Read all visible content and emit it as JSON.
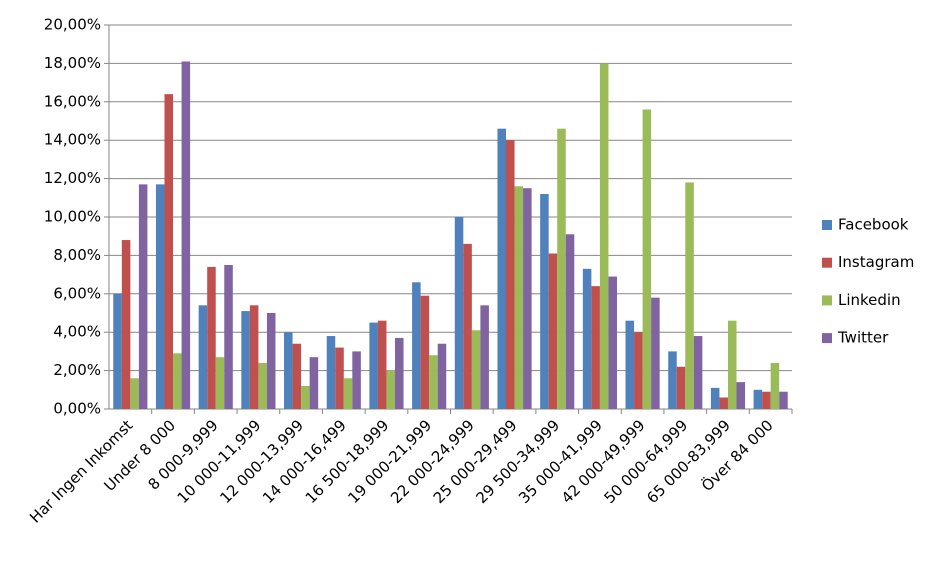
{
  "chart_data": {
    "type": "bar",
    "categories": [
      "Har Ingen Inkomst",
      "Under 8 000",
      "8 000-9,999",
      "10 000-11,999",
      "12 000-13,999",
      "14 000-16,499",
      "16 500-18,999",
      "19 000-21,999",
      "22 000-24,999",
      "25 000-29,499",
      "29 500-34,999",
      "35 000-41,999",
      "42 000-49,999",
      "50 000-64,999",
      "65 000-83,999",
      "Över 84 000"
    ],
    "series": [
      {
        "name": "Facebook",
        "color": "#4f81bd",
        "values": [
          6.0,
          11.7,
          5.4,
          5.1,
          4.0,
          3.8,
          4.5,
          6.6,
          10.0,
          14.6,
          11.2,
          7.3,
          4.6,
          3.0,
          1.1,
          1.0
        ]
      },
      {
        "name": "Instagram",
        "color": "#c0504d",
        "values": [
          8.8,
          16.4,
          7.4,
          5.4,
          3.4,
          3.2,
          4.6,
          5.9,
          8.6,
          14.0,
          8.1,
          6.4,
          4.0,
          2.2,
          0.6,
          0.9
        ]
      },
      {
        "name": "Linkedin",
        "color": "#9bbb59",
        "values": [
          1.6,
          2.9,
          2.7,
          2.4,
          1.2,
          1.6,
          2.0,
          2.8,
          4.1,
          11.6,
          14.6,
          18.0,
          15.6,
          11.8,
          4.6,
          2.4
        ]
      },
      {
        "name": "Twitter",
        "color": "#8064a2",
        "values": [
          11.7,
          18.1,
          7.5,
          5.0,
          2.7,
          3.0,
          3.7,
          3.4,
          5.4,
          11.5,
          9.1,
          6.9,
          5.8,
          3.8,
          1.4,
          0.9
        ]
      }
    ],
    "ylim": [
      0,
      20
    ],
    "yticks": [
      {
        "value": 0,
        "label": "0,00%"
      },
      {
        "value": 2,
        "label": "2,00%"
      },
      {
        "value": 4,
        "label": "4,00%"
      },
      {
        "value": 6,
        "label": "6,00%"
      },
      {
        "value": 8,
        "label": "8,00%"
      },
      {
        "value": 10,
        "label": "10,00%"
      },
      {
        "value": 12,
        "label": "12,00%"
      },
      {
        "value": 14,
        "label": "14,00%"
      },
      {
        "value": 16,
        "label": "16,00%"
      },
      {
        "value": 18,
        "label": "18,00%"
      },
      {
        "value": 20,
        "label": "20,00%"
      }
    ],
    "grid": true,
    "legend": "right"
  }
}
